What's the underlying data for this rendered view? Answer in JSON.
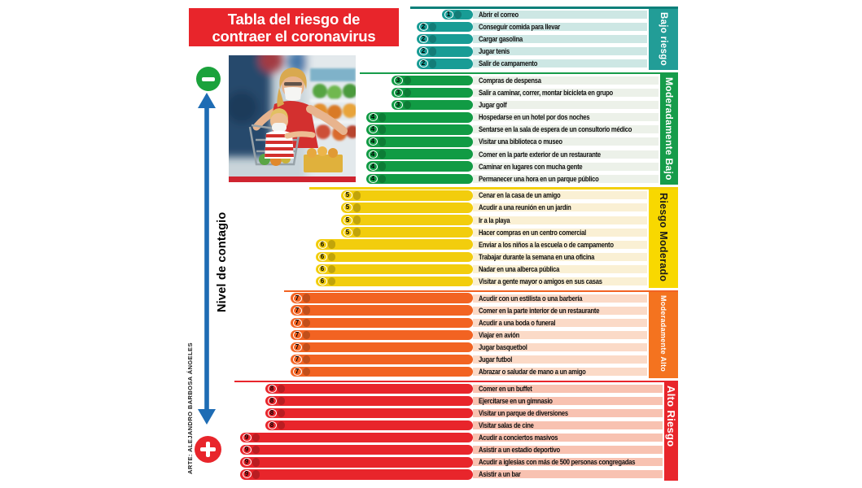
{
  "header": {
    "title_lines": [
      "Tabla del riesgo de",
      "contraer el coronavirus"
    ],
    "bg_color": "#e8252b",
    "text_color": "#ffffff"
  },
  "axis": {
    "label": "Nivel de contagio",
    "top_icon": "minus-icon",
    "bottom_icon": "plus-icon",
    "arrow_color": "#1e6cb4",
    "minus_color": "#1ba23c",
    "plus_color": "#e8252b"
  },
  "credit": "ARTE: ALEJANDRO BARBOSA ÁNGELES",
  "photo": {
    "description": "Mujer y niño con cubrebocas comprando frutas y verduras en un supermercado"
  },
  "chart_data": {
    "type": "bar",
    "orientation": "horizontal",
    "title": "Tabla del riesgo de contraer el coronavirus",
    "value_label": "Nivel de contagio",
    "value_range": [
      1,
      9
    ],
    "legend_position": "right-bands",
    "groups": [
      {
        "label": "Bajo riesgo",
        "bar_color": "#189c95",
        "band_color": "#229d97",
        "band_text_color": "#ffffff",
        "bg_color": "#cde7e4",
        "line_color": "#0d807a",
        "items": [
          {
            "value": 1,
            "label": "Abrir el correo"
          },
          {
            "value": 2,
            "label": "Conseguir comida para llevar"
          },
          {
            "value": 2,
            "label": "Cargar gasolina"
          },
          {
            "value": 2,
            "label": "Jugar tenis"
          },
          {
            "value": 2,
            "label": "Salir de campamento"
          }
        ]
      },
      {
        "label": "Moderadamente Bajo",
        "bar_color": "#119b44",
        "band_color": "#169c4a",
        "band_text_color": "#ffffff",
        "bg_color": "#ecf1e9",
        "line_color": "#169c4a",
        "items": [
          {
            "value": 3,
            "label": "Compras de despensa"
          },
          {
            "value": 3,
            "label": "Salir a caminar, correr, montar bicicleta en grupo"
          },
          {
            "value": 3,
            "label": "Jugar golf"
          },
          {
            "value": 4,
            "label": "Hospedarse en un hotel por dos noches"
          },
          {
            "value": 4,
            "label": "Sentarse en la sala de espera de un consultorio médico"
          },
          {
            "value": 4,
            "label": "Visitar una biblioteca o museo"
          },
          {
            "value": 4,
            "label": "Comer en la parte exterior de un restaurante"
          },
          {
            "value": 4,
            "label": "Caminar en lugares con mucha gente"
          },
          {
            "value": 4,
            "label": "Permanecer una hora en un parque público"
          }
        ]
      },
      {
        "label": "Riesgo Moderado",
        "bar_color": "#f2cd0d",
        "band_color": "#f8d800",
        "band_text_color": "#1a1a1a",
        "bg_color": "#faf0d4",
        "line_color": "#f3cf0a",
        "items": [
          {
            "value": 5,
            "label": "Cenar en la casa de un amigo"
          },
          {
            "value": 5,
            "label": "Acudir a una reunión en un jardín"
          },
          {
            "value": 5,
            "label": "Ir a la playa"
          },
          {
            "value": 5,
            "label": "Hacer compras en un centro comercial"
          },
          {
            "value": 6,
            "label": "Enviar a los niños a la escuela o de campamento"
          },
          {
            "value": 6,
            "label": "Trabajar durante la semana en una oficina"
          },
          {
            "value": 6,
            "label": "Nadar en una alberca pública"
          },
          {
            "value": 6,
            "label": "Visitar a gente mayor o amigos en sus casas"
          }
        ]
      },
      {
        "label": "Moderadamente Alto",
        "bar_color": "#f26322",
        "band_color": "#f4731f",
        "band_text_color": "#ffffff",
        "bg_color": "#fbdac7",
        "line_color": "#f26322",
        "items": [
          {
            "value": 7,
            "label": "Acudir con un estilista o una barbería"
          },
          {
            "value": 7,
            "label": "Comer en la parte interior de un restaurante"
          },
          {
            "value": 7,
            "label": "Acudir a una boda o funeral"
          },
          {
            "value": 7,
            "label": "Viajar en avión"
          },
          {
            "value": 7,
            "label": "Jugar basquetbol"
          },
          {
            "value": 7,
            "label": "Jugar futbol"
          },
          {
            "value": 7,
            "label": "Abrazar o saludar de mano a un amigo"
          }
        ]
      },
      {
        "label": "Alto Riesgo",
        "bar_color": "#e8252b",
        "band_color": "#e8252b",
        "band_text_color": "#ffffff",
        "bg_color": "#f8c2b1",
        "line_color": "#e8252b",
        "items": [
          {
            "value": 8,
            "label": "Comer en un buffet"
          },
          {
            "value": 8,
            "label": "Ejercitarse en un gimnasio"
          },
          {
            "value": 8,
            "label": "Visitar un parque de diversiones"
          },
          {
            "value": 8,
            "label": "Visitar salas de cine"
          },
          {
            "value": 9,
            "label": "Acudir a conciertos masivos"
          },
          {
            "value": 9,
            "label": "Asistir a un estadio deportivo"
          },
          {
            "value": 9,
            "label": "Acudir a iglesias con más de 500 personas congregadas"
          },
          {
            "value": 9,
            "label": "Asistir a un bar"
          }
        ]
      }
    ]
  }
}
